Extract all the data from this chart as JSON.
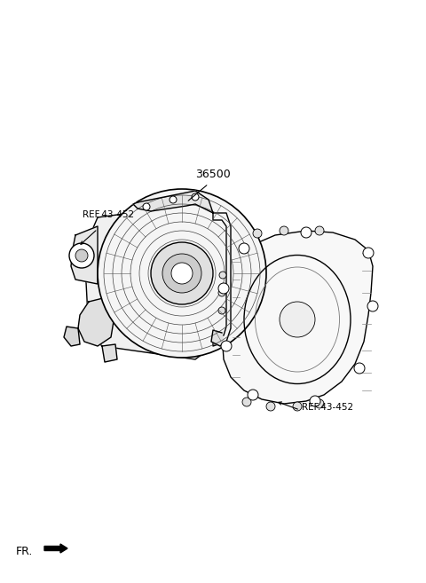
{
  "bg_color": "#ffffff",
  "line_color": "#000000",
  "gray_color": "#888888",
  "light_gray": "#aaaaaa",
  "dark_gray": "#555555",
  "label_36500": "36500",
  "label_ref1": "REF.43-452",
  "label_ref2": "REF.43-452",
  "label_fr": "FR.",
  "title": "",
  "fig_width": 4.8,
  "fig_height": 6.57,
  "dpi": 100
}
